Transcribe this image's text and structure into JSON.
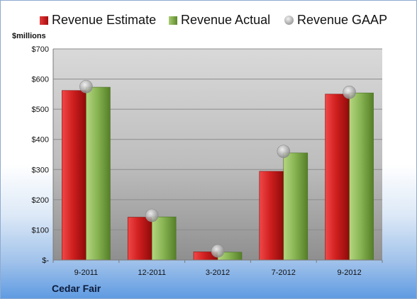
{
  "chart_data": {
    "type": "bar",
    "categories": [
      "9-2011",
      "12-2011",
      "3-2012",
      "7-2012",
      "9-2012"
    ],
    "series": [
      {
        "name": "Revenue Estimate",
        "values": [
          562,
          142,
          27,
          294,
          550
        ],
        "color": "#c81e1e",
        "kind": "bar"
      },
      {
        "name": "Revenue Actual",
        "values": [
          573,
          143,
          26,
          355,
          554
        ],
        "color": "#8cb358",
        "kind": "bar"
      },
      {
        "name": "Revenue GAAP",
        "values": [
          575,
          148,
          30,
          360,
          556
        ],
        "color": "#b0b0b0",
        "kind": "marker"
      }
    ],
    "ylabel": "$millions",
    "ylim": [
      0,
      700
    ],
    "y_ticks": [
      0,
      100,
      200,
      300,
      400,
      500,
      600,
      700
    ],
    "y_tick_labels": [
      "$-",
      "$100",
      "$200",
      "$300",
      "$400",
      "$500",
      "$600",
      "$700"
    ],
    "grid": true,
    "legend_position": "top"
  },
  "footer": {
    "company": "Cedar Fair"
  }
}
